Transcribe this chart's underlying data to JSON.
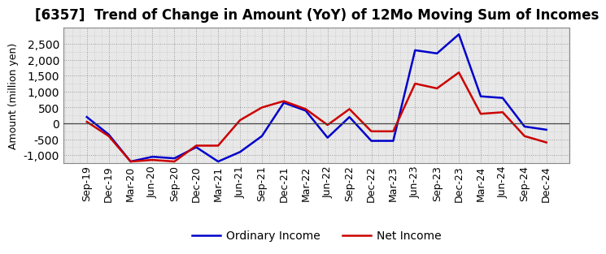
{
  "title": "[6357]  Trend of Change in Amount (YoY) of 12Mo Moving Sum of Incomes",
  "ylabel": "Amount (million yen)",
  "x_labels": [
    "Sep-19",
    "Dec-19",
    "Mar-20",
    "Jun-20",
    "Sep-20",
    "Dec-20",
    "Mar-21",
    "Jun-21",
    "Sep-21",
    "Dec-21",
    "Mar-22",
    "Jun-22",
    "Sep-22",
    "Dec-22",
    "Mar-23",
    "Jun-23",
    "Sep-23",
    "Dec-23",
    "Mar-24",
    "Jun-24",
    "Sep-24",
    "Dec-24"
  ],
  "ordinary_income": [
    200,
    -350,
    -1200,
    -1050,
    -1100,
    -750,
    -1200,
    -900,
    -400,
    650,
    400,
    -450,
    200,
    -550,
    -550,
    2300,
    2200,
    2800,
    850,
    800,
    -100,
    -200
  ],
  "net_income": [
    50,
    -400,
    -1200,
    -1150,
    -1200,
    -700,
    -700,
    100,
    500,
    700,
    450,
    -50,
    450,
    -250,
    -250,
    1250,
    1100,
    1600,
    300,
    350,
    -400,
    -600
  ],
  "ordinary_color": "#0000cc",
  "net_color": "#cc0000",
  "ylim": [
    -1250,
    3000
  ],
  "yticks": [
    -1000,
    -500,
    0,
    500,
    1000,
    1500,
    2000,
    2500
  ],
  "plot_bg_color": "#e8e8e8",
  "fig_bg_color": "#ffffff",
  "grid_color": "#999999",
  "title_fontsize": 12,
  "axis_label_fontsize": 9,
  "tick_fontsize": 9,
  "legend_fontsize": 10,
  "line_width": 1.8
}
